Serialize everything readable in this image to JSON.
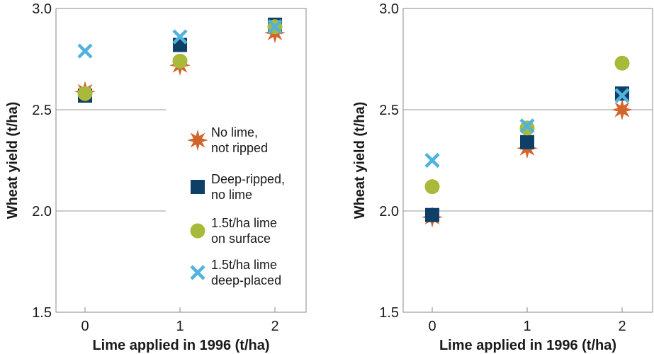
{
  "chart_data": [
    {
      "type": "scatter",
      "title": "",
      "xlabel": "Lime applied in 1996 (t/ha)",
      "ylabel": "Wheat yield (t/ha)",
      "x": [
        0,
        1,
        2
      ],
      "xticks": [
        "0",
        "1",
        "2"
      ],
      "ylim": [
        1.5,
        3.0
      ],
      "yticks": [
        "1.5",
        "2.0",
        "2.5",
        "3.0"
      ],
      "grid": "horizontal",
      "legend": "right",
      "series": [
        {
          "name": "No lime, not ripped",
          "marker": "star",
          "color": "#d2652a",
          "values": [
            2.59,
            2.72,
            2.88
          ]
        },
        {
          "name": "Deep-ripped, no lime",
          "marker": "square",
          "color": "#0e3f66",
          "values": [
            2.57,
            2.82,
            2.92
          ]
        },
        {
          "name": "1.5t/ha lime on surface",
          "marker": "circle",
          "color": "#a9b93a",
          "values": [
            2.58,
            2.74,
            2.91
          ]
        },
        {
          "name": "1.5t/ha lime deep-placed",
          "marker": "x",
          "color": "#4fb3de",
          "values": [
            2.79,
            2.86,
            2.91
          ]
        }
      ]
    },
    {
      "type": "scatter",
      "title": "",
      "xlabel": "Lime applied in 1996 (t/ha)",
      "ylabel": "Wheat yield (t/ha)",
      "x": [
        0,
        1,
        2
      ],
      "xticks": [
        "0",
        "1",
        "2"
      ],
      "ylim": [
        1.5,
        3.0
      ],
      "yticks": [
        "1.5",
        "2.0",
        "2.5",
        "3.0"
      ],
      "grid": "horizontal",
      "series": [
        {
          "name": "No lime, not ripped",
          "marker": "star",
          "color": "#d2652a",
          "values": [
            1.97,
            2.31,
            2.5
          ]
        },
        {
          "name": "Deep-ripped, no lime",
          "marker": "square",
          "color": "#0e3f66",
          "values": [
            1.98,
            2.34,
            2.58
          ]
        },
        {
          "name": "1.5t/ha lime on surface",
          "marker": "circle",
          "color": "#a9b93a",
          "values": [
            2.12,
            2.41,
            2.73
          ]
        },
        {
          "name": "1.5t/ha lime deep-placed",
          "marker": "x",
          "color": "#4fb3de",
          "values": [
            2.25,
            2.42,
            2.57
          ]
        }
      ]
    }
  ],
  "legend": {
    "items": [
      {
        "marker": "star",
        "color": "#d2652a",
        "lines": [
          "No lime,",
          "not ripped"
        ]
      },
      {
        "marker": "square",
        "color": "#0e3f66",
        "lines": [
          "Deep-ripped,",
          "no lime"
        ]
      },
      {
        "marker": "circle",
        "color": "#a9b93a",
        "lines": [
          "1.5t/ha lime",
          "on surface"
        ]
      },
      {
        "marker": "x",
        "color": "#4fb3de",
        "lines": [
          "1.5t/ha lime",
          "deep-placed"
        ]
      }
    ]
  },
  "colors": {
    "frame": "#8a8a8a",
    "grid": "#9a9a9a",
    "text": "#1a1a1a"
  }
}
